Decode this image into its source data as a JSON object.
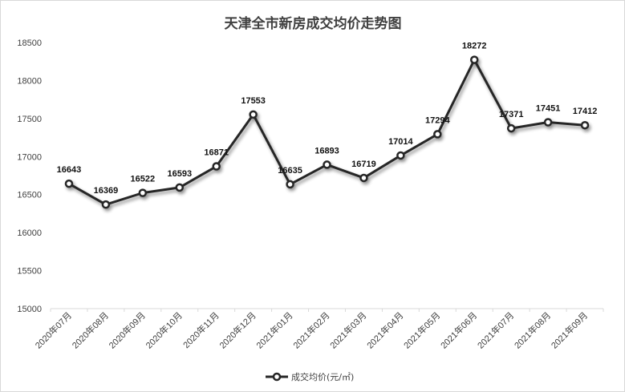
{
  "chart_data": {
    "type": "line",
    "title": "天津全市新房成交均价走势图",
    "categories": [
      "2020年07月",
      "2020年08月",
      "2020年09月",
      "2020年10月",
      "2020年11月",
      "2020年12月",
      "2021年01月",
      "2021年02月",
      "2021年03月",
      "2021年04月",
      "2021年05月",
      "2021年06月",
      "2021年07月",
      "2021年08月",
      "2021年09月"
    ],
    "series": [
      {
        "name": "成交均价(元/㎡)",
        "values": [
          16643,
          16369,
          16522,
          16593,
          16871,
          17553,
          16635,
          16893,
          16719,
          17014,
          17294,
          18272,
          17371,
          17451,
          17412
        ]
      }
    ],
    "ylim": [
      15000,
      18500
    ],
    "yticks": [
      15000,
      15500,
      16000,
      16500,
      17000,
      17500,
      18000,
      18500
    ],
    "grid": false,
    "legend": "bottom",
    "colors": {
      "line": "#262626",
      "marker_fill": "#ffffff",
      "axis": "#d9d9d9"
    }
  }
}
